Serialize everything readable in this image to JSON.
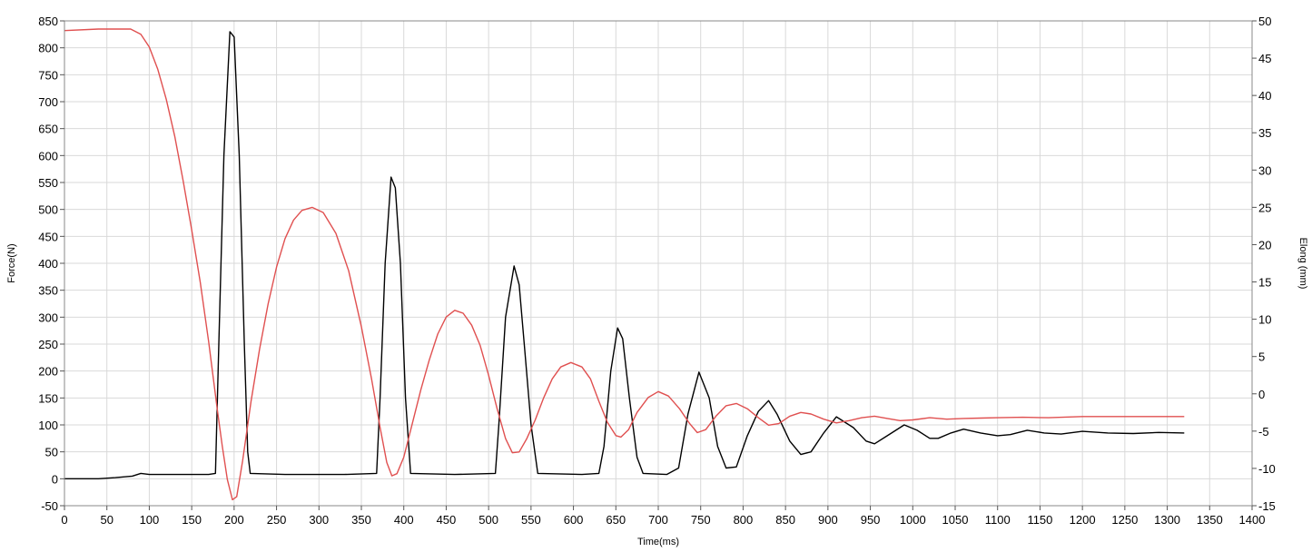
{
  "chart_data": {
    "type": "line",
    "xlabel": "Time(ms)",
    "ylabel_left": "Force(N)",
    "ylabel_right": "Elong (mm)",
    "xlim": [
      0,
      1400
    ],
    "ylim_left": [
      -50,
      850
    ],
    "ylim_right": [
      -15,
      50
    ],
    "x_ticks": [
      0,
      50,
      100,
      150,
      200,
      250,
      300,
      350,
      400,
      450,
      500,
      550,
      600,
      650,
      700,
      750,
      800,
      850,
      900,
      950,
      1000,
      1050,
      1100,
      1150,
      1200,
      1250,
      1300,
      1350,
      1400
    ],
    "y_left_ticks": [
      -50,
      0,
      50,
      100,
      150,
      200,
      250,
      300,
      350,
      400,
      450,
      500,
      550,
      600,
      650,
      700,
      750,
      800,
      850
    ],
    "y_right_ticks": [
      -15,
      -10,
      -5,
      0,
      5,
      10,
      15,
      20,
      25,
      30,
      35,
      40,
      45,
      50
    ],
    "grid": true,
    "series": [
      {
        "axis": "left",
        "color": "#000000",
        "points": [
          [
            0,
            0
          ],
          [
            40,
            0
          ],
          [
            60,
            2
          ],
          [
            80,
            5
          ],
          [
            90,
            10
          ],
          [
            100,
            8
          ],
          [
            140,
            8
          ],
          [
            170,
            8
          ],
          [
            178,
            10
          ],
          [
            182,
            250
          ],
          [
            188,
            600
          ],
          [
            195,
            830
          ],
          [
            200,
            820
          ],
          [
            206,
            600
          ],
          [
            212,
            250
          ],
          [
            216,
            50
          ],
          [
            219,
            10
          ],
          [
            260,
            8
          ],
          [
            330,
            8
          ],
          [
            368,
            10
          ],
          [
            372,
            150
          ],
          [
            378,
            400
          ],
          [
            385,
            560
          ],
          [
            390,
            540
          ],
          [
            396,
            400
          ],
          [
            402,
            150
          ],
          [
            408,
            10
          ],
          [
            460,
            8
          ],
          [
            508,
            10
          ],
          [
            512,
            100
          ],
          [
            520,
            300
          ],
          [
            530,
            395
          ],
          [
            536,
            360
          ],
          [
            542,
            250
          ],
          [
            550,
            100
          ],
          [
            558,
            10
          ],
          [
            610,
            8
          ],
          [
            630,
            10
          ],
          [
            636,
            60
          ],
          [
            644,
            200
          ],
          [
            652,
            280
          ],
          [
            658,
            260
          ],
          [
            666,
            150
          ],
          [
            675,
            40
          ],
          [
            682,
            10
          ],
          [
            710,
            8
          ],
          [
            724,
            20
          ],
          [
            735,
            120
          ],
          [
            748,
            198
          ],
          [
            760,
            150
          ],
          [
            770,
            60
          ],
          [
            780,
            20
          ],
          [
            792,
            22
          ],
          [
            805,
            80
          ],
          [
            818,
            125
          ],
          [
            830,
            145
          ],
          [
            840,
            120
          ],
          [
            855,
            70
          ],
          [
            868,
            45
          ],
          [
            880,
            50
          ],
          [
            895,
            85
          ],
          [
            910,
            115
          ],
          [
            930,
            95
          ],
          [
            945,
            70
          ],
          [
            955,
            65
          ],
          [
            970,
            80
          ],
          [
            990,
            100
          ],
          [
            1005,
            90
          ],
          [
            1020,
            75
          ],
          [
            1030,
            75
          ],
          [
            1045,
            85
          ],
          [
            1060,
            92
          ],
          [
            1080,
            85
          ],
          [
            1100,
            80
          ],
          [
            1115,
            82
          ],
          [
            1135,
            90
          ],
          [
            1155,
            85
          ],
          [
            1175,
            83
          ],
          [
            1200,
            88
          ],
          [
            1230,
            85
          ],
          [
            1260,
            84
          ],
          [
            1290,
            86
          ],
          [
            1320,
            85
          ]
        ]
      },
      {
        "axis": "right",
        "color": "#e05050",
        "points": [
          [
            0,
            48.7
          ],
          [
            40,
            48.9
          ],
          [
            78,
            48.9
          ],
          [
            90,
            48.2
          ],
          [
            100,
            46.5
          ],
          [
            110,
            43.5
          ],
          [
            120,
            39.5
          ],
          [
            130,
            34.5
          ],
          [
            140,
            28.5
          ],
          [
            150,
            22
          ],
          [
            160,
            15
          ],
          [
            170,
            7
          ],
          [
            180,
            -2
          ],
          [
            186,
            -7
          ],
          [
            192,
            -11.5
          ],
          [
            198,
            -14.2
          ],
          [
            203,
            -13.8
          ],
          [
            210,
            -9
          ],
          [
            220,
            -1
          ],
          [
            230,
            6
          ],
          [
            240,
            12
          ],
          [
            250,
            17
          ],
          [
            260,
            20.8
          ],
          [
            270,
            23.3
          ],
          [
            280,
            24.6
          ],
          [
            292,
            25
          ],
          [
            305,
            24.3
          ],
          [
            320,
            21.5
          ],
          [
            335,
            16.5
          ],
          [
            350,
            9
          ],
          [
            362,
            2
          ],
          [
            372,
            -4.5
          ],
          [
            380,
            -9.2
          ],
          [
            386,
            -11
          ],
          [
            392,
            -10.7
          ],
          [
            400,
            -8.5
          ],
          [
            410,
            -4
          ],
          [
            420,
            0.5
          ],
          [
            430,
            4.5
          ],
          [
            440,
            8
          ],
          [
            450,
            10.3
          ],
          [
            460,
            11.2
          ],
          [
            470,
            10.8
          ],
          [
            480,
            9.2
          ],
          [
            490,
            6.5
          ],
          [
            500,
            2.5
          ],
          [
            510,
            -2
          ],
          [
            520,
            -6
          ],
          [
            528,
            -7.9
          ],
          [
            536,
            -7.8
          ],
          [
            545,
            -6
          ],
          [
            555,
            -3.5
          ],
          [
            565,
            -0.5
          ],
          [
            575,
            2
          ],
          [
            585,
            3.6
          ],
          [
            597,
            4.2
          ],
          [
            610,
            3.6
          ],
          [
            620,
            2
          ],
          [
            630,
            -1
          ],
          [
            640,
            -3.8
          ],
          [
            650,
            -5.6
          ],
          [
            656,
            -5.8
          ],
          [
            665,
            -4.8
          ],
          [
            675,
            -2.5
          ],
          [
            688,
            -0.5
          ],
          [
            700,
            0.3
          ],
          [
            712,
            -0.3
          ],
          [
            725,
            -2
          ],
          [
            737,
            -4
          ],
          [
            746,
            -5.2
          ],
          [
            756,
            -4.8
          ],
          [
            768,
            -3
          ],
          [
            780,
            -1.6
          ],
          [
            792,
            -1.3
          ],
          [
            805,
            -2
          ],
          [
            818,
            -3.2
          ],
          [
            830,
            -4.2
          ],
          [
            842,
            -4
          ],
          [
            855,
            -3
          ],
          [
            868,
            -2.5
          ],
          [
            880,
            -2.7
          ],
          [
            895,
            -3.4
          ],
          [
            910,
            -3.9
          ],
          [
            925,
            -3.6
          ],
          [
            940,
            -3.2
          ],
          [
            955,
            -3
          ],
          [
            970,
            -3.3
          ],
          [
            985,
            -3.6
          ],
          [
            1000,
            -3.5
          ],
          [
            1020,
            -3.2
          ],
          [
            1040,
            -3.4
          ],
          [
            1060,
            -3.3
          ],
          [
            1080,
            -3.25
          ],
          [
            1100,
            -3.2
          ],
          [
            1130,
            -3.15
          ],
          [
            1160,
            -3.2
          ],
          [
            1200,
            -3.05
          ],
          [
            1250,
            -3.05
          ],
          [
            1290,
            -3.05
          ],
          [
            1320,
            -3.05
          ]
        ]
      }
    ]
  }
}
